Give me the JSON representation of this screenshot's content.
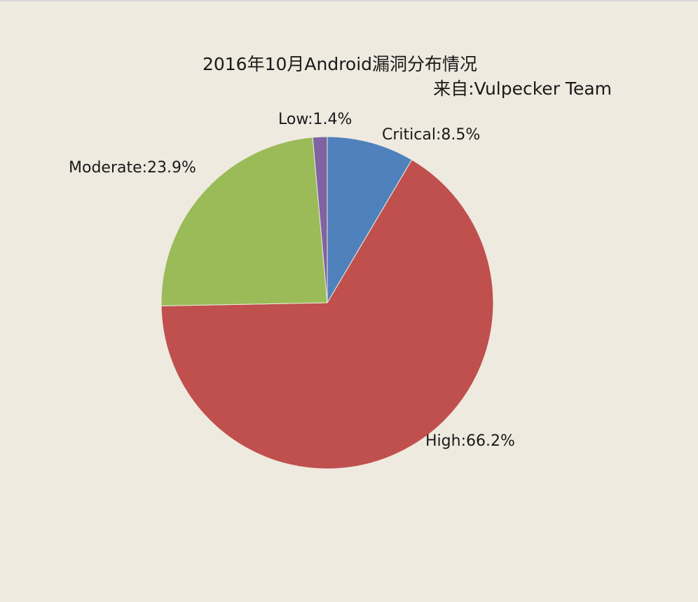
{
  "chart_data": {
    "type": "pie",
    "title": "2016年10月Android漏洞分布情况",
    "subtitle": "来自:Vulpecker Team",
    "slices": [
      {
        "name": "Critical",
        "value": 8.5,
        "label": "Critical:8.5%",
        "color": "#4f81bd"
      },
      {
        "name": "High",
        "value": 66.2,
        "label": "High:66.2%",
        "color": "#c0504d"
      },
      {
        "name": "Moderate",
        "value": 23.9,
        "label": "Moderate:23.9%",
        "color": "#9bbb59"
      },
      {
        "name": "Low",
        "value": 1.4,
        "label": "Low:1.4%",
        "color": "#8064a2"
      }
    ],
    "start_angle": "12 o'clock",
    "direction": "clockwise",
    "legend": "none"
  }
}
